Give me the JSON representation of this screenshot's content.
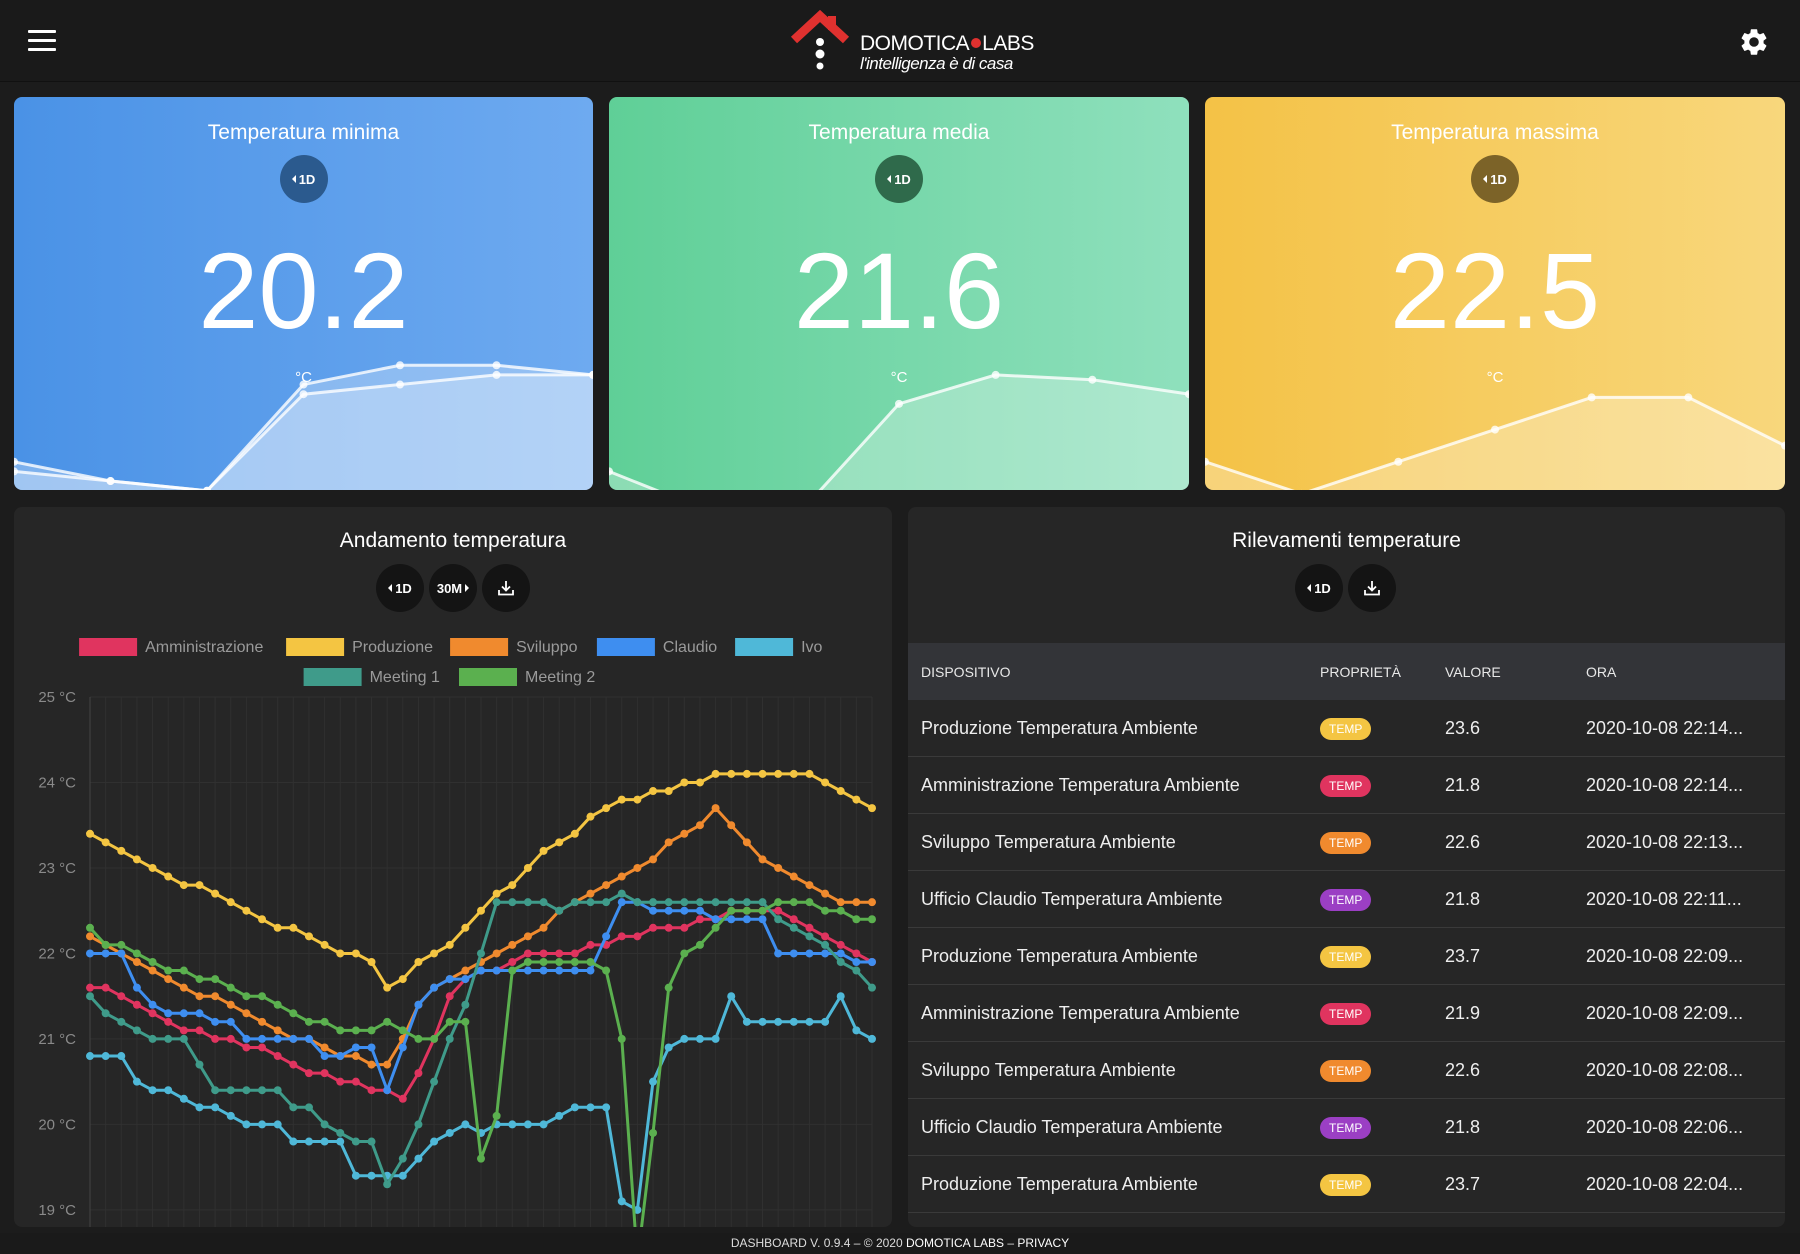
{
  "header": {
    "brand_name_left": "DOMOTICA",
    "brand_name_right": "LABS",
    "brand_tagline": "l'intelligenza è di casa",
    "menu_icon": "hamburger-icon",
    "settings_icon": "gear-icon",
    "brand_color": "#e0312f"
  },
  "kpis": {
    "min": {
      "title": "Temperatura minima",
      "range": "1D",
      "value": "20.2",
      "unit": "°C",
      "color": "#4a92e6"
    },
    "avg": {
      "title": "Temperatura media",
      "range": "1D",
      "value": "21.6",
      "unit": "°C",
      "color": "#5fcf97"
    },
    "max": {
      "title": "Temperatura massima",
      "range": "1D",
      "value": "22.5",
      "unit": "°C",
      "color": "#f4c246"
    }
  },
  "trend": {
    "title": "Andamento temperatura",
    "range_label": "1D",
    "interval_label": "30M",
    "download_icon": "download-icon"
  },
  "table": {
    "title": "Rilevamenti temperature",
    "range_label": "1D",
    "download_icon": "download-icon",
    "columns": [
      "DISPOSITIVO",
      "PROPRIETÀ",
      "VALORE",
      "ORA"
    ],
    "rows": [
      {
        "device": "Produzione Temperatura Ambiente",
        "prop": "TEMP",
        "value": "23.6",
        "time": "2020-10-08 22:14...",
        "color": "#f4c542"
      },
      {
        "device": "Amministrazione Temperatura Ambiente",
        "prop": "TEMP",
        "value": "21.8",
        "time": "2020-10-08 22:14...",
        "color": "#e0345f"
      },
      {
        "device": "Sviluppo Temperatura Ambiente",
        "prop": "TEMP",
        "value": "22.6",
        "time": "2020-10-08 22:13...",
        "color": "#f08a2e"
      },
      {
        "device": "Ufficio Claudio Temperatura Ambiente",
        "prop": "TEMP",
        "value": "21.8",
        "time": "2020-10-08 22:11...",
        "color": "#9b3fc4"
      },
      {
        "device": "Produzione Temperatura Ambiente",
        "prop": "TEMP",
        "value": "23.7",
        "time": "2020-10-08 22:09...",
        "color": "#f4c542"
      },
      {
        "device": "Amministrazione Temperatura Ambiente",
        "prop": "TEMP",
        "value": "21.9",
        "time": "2020-10-08 22:09...",
        "color": "#e0345f"
      },
      {
        "device": "Sviluppo Temperatura Ambiente",
        "prop": "TEMP",
        "value": "22.6",
        "time": "2020-10-08 22:08...",
        "color": "#f08a2e"
      },
      {
        "device": "Ufficio Claudio Temperatura Ambiente",
        "prop": "TEMP",
        "value": "21.8",
        "time": "2020-10-08 22:06...",
        "color": "#9b3fc4"
      },
      {
        "device": "Produzione Temperatura Ambiente",
        "prop": "TEMP",
        "value": "23.7",
        "time": "2020-10-08 22:04...",
        "color": "#f4c542"
      }
    ]
  },
  "footer": {
    "version": "DASHBOARD V. 0.9.4 – © 2020",
    "brand": "DOMOTICA LABS",
    "sep": "–",
    "privacy": "PRIVACY"
  },
  "chart_data": [
    {
      "type": "line",
      "title": "Temperatura minima",
      "series": [
        {
          "values": [
            20.5,
            20.3,
            20.2,
            21.3,
            21.5,
            21.5,
            21.4
          ]
        },
        {
          "values": [
            20.4,
            20.3,
            20.2,
            21.2,
            21.3,
            21.4,
            21.4
          ]
        }
      ],
      "ylim": [
        20.0,
        22.0
      ]
    },
    {
      "type": "line",
      "title": "Temperatura media",
      "series": [
        {
          "values": [
            20.8,
            20.4,
            20.4,
            21.5,
            21.8,
            21.75,
            21.6
          ]
        }
      ],
      "ylim": [
        20.4,
        22.4
      ]
    },
    {
      "type": "line",
      "title": "Temperatura massima",
      "series": [
        {
          "values": [
            22.0,
            21.8,
            22.0,
            22.2,
            22.4,
            22.4,
            22.1
          ]
        }
      ],
      "ylim": [
        21.7,
        22.9
      ]
    },
    {
      "type": "line",
      "title": "Andamento temperatura",
      "ylim": [
        18.8,
        25.0
      ],
      "ytick_labels": [
        "25 °C",
        "24 °C",
        "23 °C",
        "22 °C",
        "21 °C",
        "20 °C",
        "19 °C"
      ],
      "ytick_values": [
        25,
        24,
        23,
        22,
        21,
        20,
        19
      ],
      "grid": true,
      "legend_position": "top",
      "series": [
        {
          "name": "Amministrazione",
          "color": "#e0345f",
          "values": [
            21.6,
            21.6,
            21.5,
            21.4,
            21.3,
            21.2,
            21.1,
            21.1,
            21.0,
            21.0,
            20.9,
            20.9,
            20.8,
            20.7,
            20.6,
            20.6,
            20.5,
            20.5,
            20.4,
            20.4,
            20.3,
            20.6,
            21.0,
            21.5,
            21.7,
            21.8,
            21.8,
            21.9,
            22.0,
            22.0,
            22.0,
            22.0,
            22.1,
            22.1,
            22.2,
            22.2,
            22.3,
            22.3,
            22.3,
            22.4,
            22.4,
            22.5,
            22.5,
            22.5,
            22.5,
            22.4,
            22.3,
            22.2,
            22.1,
            22.0,
            21.9
          ]
        },
        {
          "name": "Produzione",
          "color": "#f4c542",
          "values": [
            23.4,
            23.3,
            23.2,
            23.1,
            23.0,
            22.9,
            22.8,
            22.8,
            22.7,
            22.6,
            22.5,
            22.4,
            22.3,
            22.3,
            22.2,
            22.1,
            22.0,
            22.0,
            21.9,
            21.6,
            21.7,
            21.9,
            22.0,
            22.1,
            22.3,
            22.5,
            22.7,
            22.8,
            23.0,
            23.2,
            23.3,
            23.4,
            23.6,
            23.7,
            23.8,
            23.8,
            23.9,
            23.9,
            24.0,
            24.0,
            24.1,
            24.1,
            24.1,
            24.1,
            24.1,
            24.1,
            24.1,
            24.0,
            23.9,
            23.8,
            23.7
          ]
        },
        {
          "name": "Sviluppo",
          "color": "#f08a2e",
          "values": [
            22.2,
            22.1,
            22.0,
            21.9,
            21.8,
            21.7,
            21.6,
            21.5,
            21.5,
            21.4,
            21.3,
            21.2,
            21.1,
            21.0,
            21.0,
            20.9,
            20.8,
            20.8,
            20.7,
            20.7,
            21.0,
            21.4,
            21.6,
            21.7,
            21.8,
            21.9,
            22.0,
            22.1,
            22.2,
            22.3,
            22.5,
            22.6,
            22.7,
            22.8,
            22.9,
            23.0,
            23.1,
            23.3,
            23.4,
            23.5,
            23.7,
            23.5,
            23.3,
            23.1,
            23.0,
            22.9,
            22.8,
            22.7,
            22.6,
            22.6,
            22.6
          ]
        },
        {
          "name": "Claudio",
          "color": "#3e8ef0",
          "values": [
            22.0,
            22.0,
            22.0,
            21.6,
            21.4,
            21.3,
            21.3,
            21.3,
            21.2,
            21.2,
            21.0,
            21.0,
            21.0,
            21.0,
            21.0,
            20.8,
            20.8,
            20.9,
            20.9,
            20.4,
            20.9,
            21.4,
            21.6,
            21.7,
            21.7,
            21.8,
            21.8,
            21.8,
            21.8,
            21.8,
            21.8,
            21.8,
            21.8,
            22.2,
            22.6,
            22.6,
            22.5,
            22.5,
            22.5,
            22.5,
            22.4,
            22.4,
            22.4,
            22.4,
            22.0,
            22.0,
            22.0,
            22.0,
            22.0,
            21.9,
            21.9
          ]
        },
        {
          "name": "Ivo",
          "color": "#4fb8d8",
          "values": [
            20.8,
            20.8,
            20.8,
            20.5,
            20.4,
            20.4,
            20.3,
            20.2,
            20.2,
            20.1,
            20.0,
            20.0,
            20.0,
            19.8,
            19.8,
            19.8,
            19.8,
            19.4,
            19.4,
            19.4,
            19.4,
            19.6,
            19.8,
            19.9,
            20.0,
            19.9,
            20.0,
            20.0,
            20.0,
            20.0,
            20.1,
            20.2,
            20.2,
            20.2,
            19.1,
            19.0,
            20.5,
            20.9,
            21.0,
            21.0,
            21.0,
            21.5,
            21.2,
            21.2,
            21.2,
            21.2,
            21.2,
            21.2,
            21.5,
            21.1,
            21.0
          ]
        },
        {
          "name": "Meeting 1",
          "color": "#3f9b8a",
          "values": [
            21.5,
            21.3,
            21.2,
            21.1,
            21.0,
            21.0,
            21.0,
            20.7,
            20.4,
            20.4,
            20.4,
            20.4,
            20.4,
            20.2,
            20.2,
            20.0,
            19.9,
            19.8,
            19.8,
            19.3,
            19.6,
            20.0,
            20.5,
            21.0,
            21.4,
            22.0,
            22.6,
            22.6,
            22.6,
            22.6,
            22.5,
            22.6,
            22.6,
            22.6,
            22.7,
            22.6,
            22.6,
            22.6,
            22.6,
            22.6,
            22.6,
            22.6,
            22.6,
            22.6,
            22.4,
            22.3,
            22.2,
            22.1,
            21.9,
            21.8,
            21.6
          ]
        },
        {
          "name": "Meeting 2",
          "color": "#5bb04f",
          "values": [
            22.3,
            22.1,
            22.1,
            22.0,
            21.9,
            21.8,
            21.8,
            21.7,
            21.7,
            21.6,
            21.5,
            21.5,
            21.4,
            21.3,
            21.2,
            21.2,
            21.1,
            21.1,
            21.1,
            21.2,
            21.1,
            21.0,
            21.0,
            21.2,
            21.2,
            19.6,
            20.1,
            21.8,
            21.9,
            21.9,
            21.9,
            21.9,
            21.9,
            21.8,
            21.0,
            18.4,
            19.9,
            21.6,
            22.0,
            22.1,
            22.3,
            22.5,
            22.5,
            22.5,
            22.6,
            22.6,
            22.6,
            22.5,
            22.5,
            22.4,
            22.4
          ]
        }
      ]
    }
  ]
}
